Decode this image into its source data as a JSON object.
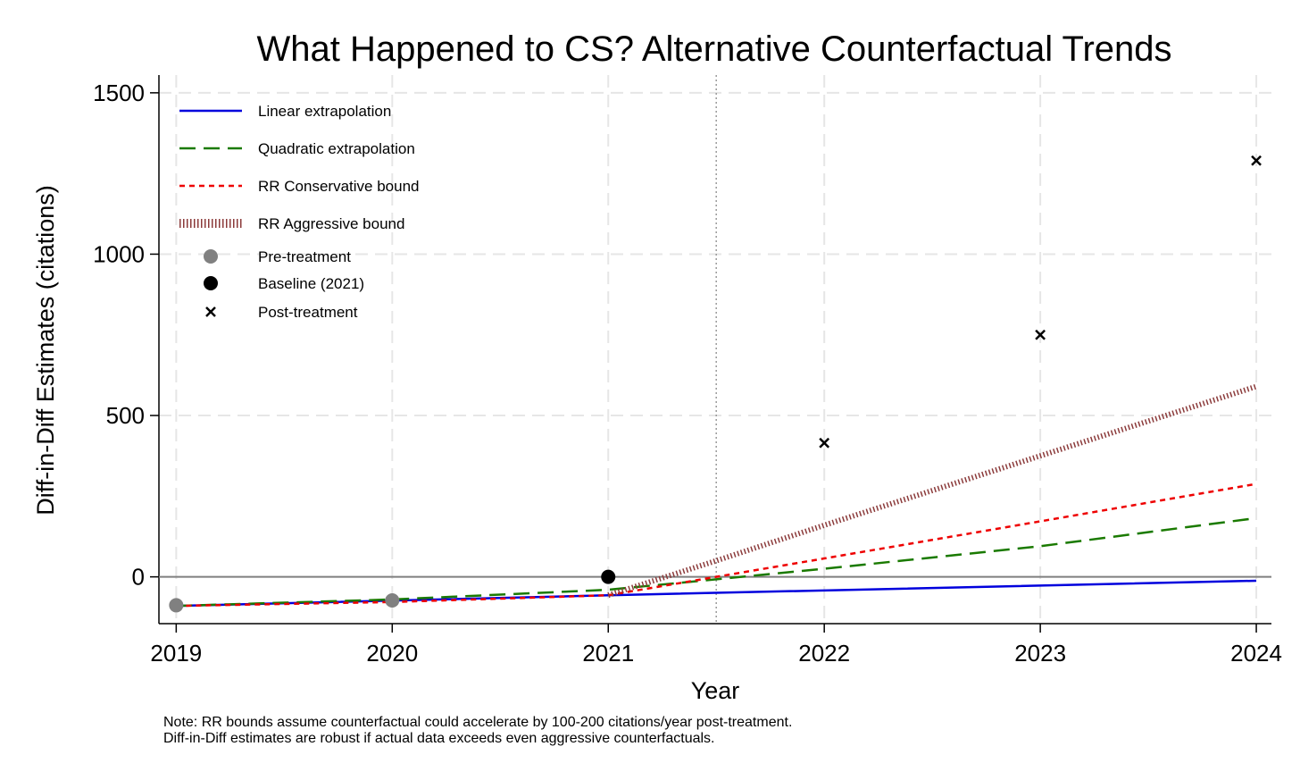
{
  "chart_data": {
    "type": "line",
    "title": "What Happened to CS? Alternative Counterfactual Trends",
    "xlabel": "Year",
    "ylabel": "Diff-in-Diff Estimates (citations)",
    "xlim": [
      2018.92,
      2024.07
    ],
    "ylim": [
      -145,
      1555
    ],
    "x_ticks": [
      2019,
      2020,
      2021,
      2022,
      2023,
      2024
    ],
    "y_ticks": [
      0,
      500,
      1000,
      1500
    ],
    "grid": true,
    "treatment_line_x": 2021.5,
    "legend": {
      "position": "top-left",
      "entries": [
        {
          "label": "Linear extrapolation",
          "kind": "line",
          "color": "#0000dd",
          "dash": "solid"
        },
        {
          "label": "Quadratic extrapolation",
          "kind": "line",
          "color": "#1a7a00",
          "dash": "long"
        },
        {
          "label": "RR Conservative bound",
          "kind": "line",
          "color": "#ee0000",
          "dash": "short"
        },
        {
          "label": "RR Aggressive bound",
          "kind": "line",
          "color": "#8b3a3a",
          "dash": "dotted"
        },
        {
          "label": "Pre-treatment",
          "kind": "circle",
          "color": "#808080"
        },
        {
          "label": "Baseline (2021)",
          "kind": "circle",
          "color": "#000000"
        },
        {
          "label": "Post-treatment",
          "kind": "cross",
          "color": "#000000"
        }
      ]
    },
    "series": [
      {
        "name": "Linear extrapolation",
        "color": "#0000dd",
        "dash": "solid",
        "x": [
          2019,
          2021,
          2024
        ],
        "y": [
          -90,
          -57,
          -12
        ]
      },
      {
        "name": "Quadratic extrapolation",
        "color": "#1a7a00",
        "dash": "long",
        "x": [
          2019,
          2020,
          2021,
          2022,
          2023,
          2024
        ],
        "y": [
          -90,
          -70,
          -40,
          25,
          95,
          182
        ]
      },
      {
        "name": "RR Conservative bound",
        "color": "#ee0000",
        "dash": "short",
        "x": [
          2019,
          2020,
          2021,
          2021.5,
          2022,
          2023,
          2024
        ],
        "y": [
          -90,
          -78,
          -57,
          0,
          57,
          172,
          288
        ]
      },
      {
        "name": "RR Aggressive bound",
        "color": "#8b3a3a",
        "dash": "dotted",
        "x": [
          2021,
          2021.5,
          2022,
          2023,
          2024
        ],
        "y": [
          -57,
          50,
          160,
          375,
          590
        ]
      },
      {
        "name": "Pre-treatment",
        "color": "#808080",
        "marker": "circle",
        "x": [
          2019,
          2020
        ],
        "y": [
          -88,
          -73
        ]
      },
      {
        "name": "Baseline (2021)",
        "color": "#000000",
        "marker": "circle",
        "x": [
          2021
        ],
        "y": [
          0
        ]
      },
      {
        "name": "Post-treatment",
        "color": "#000000",
        "marker": "cross",
        "x": [
          2022,
          2023,
          2024
        ],
        "y": [
          415,
          750,
          1290
        ]
      }
    ]
  },
  "note": {
    "line1": "Note: RR bounds assume counterfactual could accelerate by 100-200 citations/year post-treatment.",
    "line2": "Diff-in-Diff estimates are robust if actual data exceeds even aggressive counterfactuals."
  }
}
